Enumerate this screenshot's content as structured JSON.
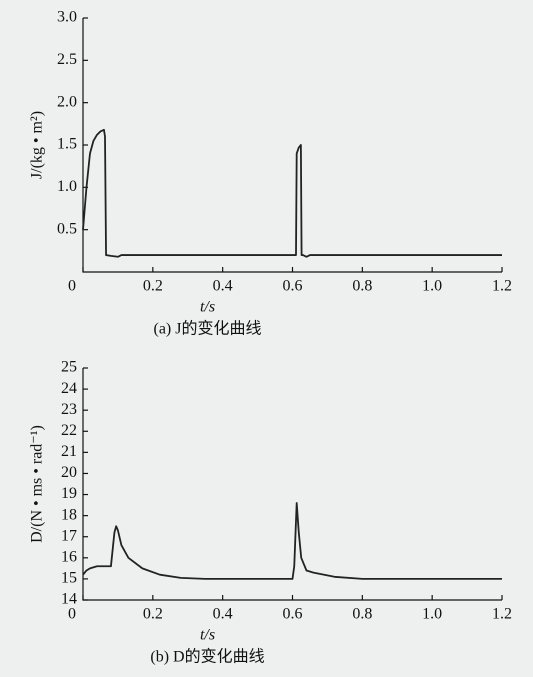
{
  "chart_data": [
    {
      "type": "line",
      "y_label": "J/(kg • m²)",
      "x_label": "t/s",
      "caption": "(a) J的变化曲线",
      "xlim": [
        0,
        1.2
      ],
      "ylim": [
        0,
        3
      ],
      "xticks": [
        0,
        0.2,
        0.4,
        0.6,
        0.8,
        {
          "value": 1,
          "label": "1.0"
        },
        1.2
      ],
      "yticks": [
        0.5,
        {
          "value": 1,
          "label": "1.0"
        },
        1.5,
        {
          "value": 2,
          "label": "2.0"
        },
        2.5,
        {
          "value": 3,
          "label": "3.0"
        }
      ],
      "color": "#222222",
      "x": [
        0,
        0.01,
        0.02,
        0.03,
        0.04,
        0.05,
        0.06,
        0.063,
        0.066,
        0.08,
        0.1,
        0.11,
        0.6,
        0.61,
        0.612,
        0.618,
        0.624,
        0.626,
        0.63,
        0.64,
        0.65,
        1.2
      ],
      "values": [
        0.5,
        1.0,
        1.4,
        1.55,
        1.62,
        1.66,
        1.68,
        1.6,
        0.2,
        0.19,
        0.18,
        0.2,
        0.2,
        0.2,
        1.4,
        1.47,
        1.5,
        0.2,
        0.2,
        0.18,
        0.2,
        0.2
      ]
    },
    {
      "type": "line",
      "y_label": "D/(N • ms • rad⁻¹)",
      "x_label": "t/s",
      "caption": "(b) D的变化曲线",
      "xlim": [
        0,
        1.2
      ],
      "ylim": [
        14,
        25
      ],
      "xticks": [
        0,
        0.2,
        0.4,
        0.6,
        0.8,
        {
          "value": 1,
          "label": "1.0"
        },
        1.2
      ],
      "yticks": [
        14,
        15,
        16,
        17,
        18,
        19,
        20,
        21,
        22,
        23,
        24,
        25
      ],
      "color": "#222222",
      "x": [
        0,
        0.01,
        0.02,
        0.04,
        0.08,
        0.09,
        0.095,
        0.1,
        0.11,
        0.13,
        0.17,
        0.22,
        0.28,
        0.35,
        0.6,
        0.605,
        0.612,
        0.618,
        0.625,
        0.64,
        0.66,
        0.72,
        0.8,
        1.2
      ],
      "values": [
        15.2,
        15.4,
        15.5,
        15.6,
        15.6,
        17.2,
        17.5,
        17.3,
        16.6,
        16.0,
        15.5,
        15.2,
        15.05,
        15.0,
        15.0,
        15.6,
        18.6,
        17.2,
        16.0,
        15.4,
        15.3,
        15.1,
        15.0,
        15.0
      ]
    }
  ]
}
